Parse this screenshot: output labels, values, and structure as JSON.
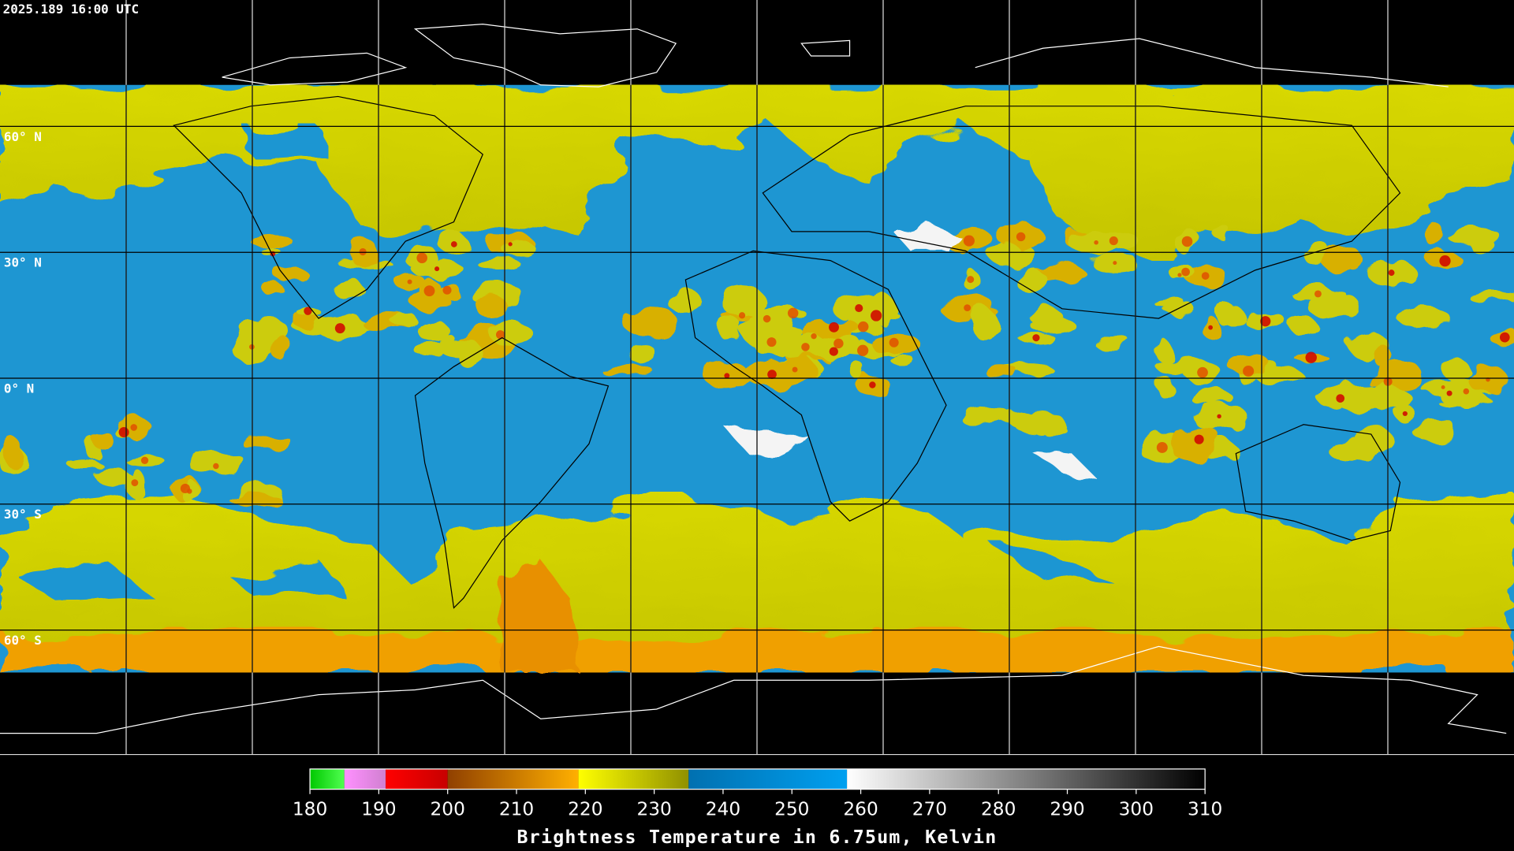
{
  "timestamp": "2025.189 16:00 UTC",
  "latitude_labels": [
    {
      "value": 60,
      "label": "60° N"
    },
    {
      "value": 30,
      "label": "30° N"
    },
    {
      "value": 0,
      "label": "0° N"
    },
    {
      "value": -30,
      "label": "30° S"
    },
    {
      "value": -60,
      "label": "60° S"
    }
  ],
  "colorbar": {
    "title": "Brightness Temperature in 6.75um, Kelvin",
    "range": [
      180,
      310
    ],
    "ticks": [
      180,
      190,
      200,
      210,
      220,
      230,
      240,
      250,
      260,
      270,
      280,
      290,
      300,
      310
    ],
    "segments": [
      {
        "from": 180,
        "to": 185,
        "colors": [
          "#00c800",
          "#50ff50"
        ]
      },
      {
        "from": 185,
        "to": 191,
        "colors": [
          "#ff90ff",
          "#d080d0"
        ]
      },
      {
        "from": 191,
        "to": 200,
        "colors": [
          "#ff0000",
          "#c80000"
        ]
      },
      {
        "from": 200,
        "to": 219,
        "colors": [
          "#904000",
          "#ffb000"
        ]
      },
      {
        "from": 219,
        "to": 235,
        "colors": [
          "#ffff00",
          "#909000"
        ]
      },
      {
        "from": 235,
        "to": 258,
        "colors": [
          "#0070b0",
          "#00a0f0"
        ]
      },
      {
        "from": 258,
        "to": 310,
        "colors": [
          "#ffffff",
          "#000000"
        ]
      }
    ]
  }
}
